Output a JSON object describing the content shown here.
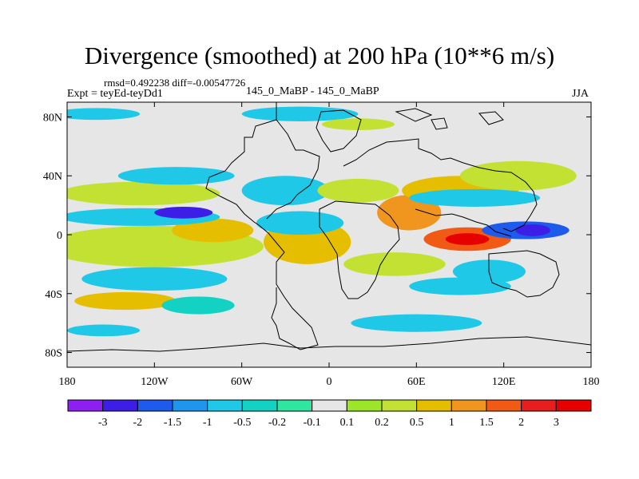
{
  "chart_data": {
    "type": "heatmap",
    "title": "Divergence (smoothed) at 200 hPa (10**6 m/s)",
    "stats": {
      "rmsd_label": "rmsd=",
      "rmsd": "0.492238",
      "diff_label": "diff=",
      "diff": "-0.00547726"
    },
    "experiment": "Expt = teyEd-teyDd1",
    "cases": "145_0_MaBP - 145_0_MaBP",
    "season": "JJA",
    "x_ticks": [
      {
        "value": -180,
        "label": "180"
      },
      {
        "value": -120,
        "label": "120W"
      },
      {
        "value": -60,
        "label": "60W"
      },
      {
        "value": 0,
        "label": "0"
      },
      {
        "value": 60,
        "label": "60E"
      },
      {
        "value": 120,
        "label": "120E"
      },
      {
        "value": 180,
        "label": "180"
      }
    ],
    "y_ticks": [
      {
        "value": 80,
        "label": "80N"
      },
      {
        "value": 40,
        "label": "40N"
      },
      {
        "value": 0,
        "label": "0"
      },
      {
        "value": -40,
        "label": "40S"
      },
      {
        "value": -80,
        "label": "80S"
      }
    ],
    "xlim": [
      -180,
      180
    ],
    "ylim": [
      -90,
      90
    ],
    "colorbar": {
      "labels": [
        "-3",
        "-2",
        "-1.5",
        "-1",
        "-0.5",
        "-0.2",
        "-0.1",
        "0.1",
        "0.2",
        "0.5",
        "1",
        "1.5",
        "2",
        "3"
      ],
      "colors": [
        "#8b20f0",
        "#3c1ee6",
        "#1e5aeb",
        "#1e96eb",
        "#1ec8e6",
        "#14d2c3",
        "#2ee6a0",
        "#e6e6e6",
        "#9be628",
        "#c3e132",
        "#e6be00",
        "#f0961e",
        "#f05a14",
        "#e61e1e",
        "#e60000"
      ]
    },
    "field": {
      "background_level": 7,
      "features": [
        {
          "lon": -135,
          "lat": -8,
          "rlon": 30,
          "rlat": 6,
          "level": 14
        },
        {
          "lon": -125,
          "lat": -8,
          "rlon": 55,
          "rlat": 10,
          "level": 11
        },
        {
          "lon": -120,
          "lat": -8,
          "rlon": 75,
          "rlat": 14,
          "level": 9
        },
        {
          "lon": -80,
          "lat": 3,
          "rlon": 18,
          "rlat": 5,
          "level": 13
        },
        {
          "lon": -80,
          "lat": 3,
          "rlon": 28,
          "rlat": 8,
          "level": 10
        },
        {
          "lon": -130,
          "lat": 12,
          "rlon": 55,
          "rlat": 6,
          "level": 4
        },
        {
          "lon": -100,
          "lat": 15,
          "rlon": 20,
          "rlat": 4,
          "level": 1
        },
        {
          "lon": -130,
          "lat": 28,
          "rlon": 55,
          "rlat": 8,
          "level": 9
        },
        {
          "lon": -105,
          "lat": 40,
          "rlon": 40,
          "rlat": 6,
          "level": 4
        },
        {
          "lon": -120,
          "lat": -30,
          "rlon": 50,
          "rlat": 8,
          "level": 4
        },
        {
          "lon": -140,
          "lat": -45,
          "rlon": 35,
          "rlat": 6,
          "level": 10
        },
        {
          "lon": -90,
          "lat": -48,
          "rlon": 25,
          "rlat": 6,
          "level": 5
        },
        {
          "lon": -15,
          "lat": -5,
          "rlon": 30,
          "rlat": 15,
          "level": 10
        },
        {
          "lon": -20,
          "lat": 8,
          "rlon": 30,
          "rlat": 8,
          "level": 4
        },
        {
          "lon": -30,
          "lat": 30,
          "rlon": 30,
          "rlat": 10,
          "level": 4
        },
        {
          "lon": 20,
          "lat": 30,
          "rlon": 28,
          "rlat": 8,
          "level": 9
        },
        {
          "lon": 55,
          "lat": 15,
          "rlon": 22,
          "rlat": 12,
          "level": 11
        },
        {
          "lon": 95,
          "lat": -3,
          "rlon": 30,
          "rlat": 8,
          "level": 12
        },
        {
          "lon": 95,
          "lat": -3,
          "rlon": 15,
          "rlat": 4,
          "level": 14
        },
        {
          "lon": 135,
          "lat": 3,
          "rlon": 30,
          "rlat": 6,
          "level": 2
        },
        {
          "lon": 140,
          "lat": 3,
          "rlon": 12,
          "rlat": 4,
          "level": 1
        },
        {
          "lon": 90,
          "lat": 30,
          "rlon": 40,
          "rlat": 10,
          "level": 10
        },
        {
          "lon": 130,
          "lat": 40,
          "rlon": 40,
          "rlat": 10,
          "level": 9
        },
        {
          "lon": 100,
          "lat": 25,
          "rlon": 45,
          "rlat": 6,
          "level": 4
        },
        {
          "lon": 45,
          "lat": -20,
          "rlon": 35,
          "rlat": 8,
          "level": 9
        },
        {
          "lon": 110,
          "lat": -25,
          "rlon": 25,
          "rlat": 8,
          "level": 4
        },
        {
          "lon": 90,
          "lat": -35,
          "rlon": 35,
          "rlat": 6,
          "level": 4
        },
        {
          "lon": 60,
          "lat": -60,
          "rlon": 45,
          "rlat": 6,
          "level": 4
        },
        {
          "lon": -155,
          "lat": -65,
          "rlon": 25,
          "rlat": 4,
          "level": 4
        },
        {
          "lon": -20,
          "lat": 82,
          "rlon": 40,
          "rlat": 5,
          "level": 4
        },
        {
          "lon": 20,
          "lat": 75,
          "rlon": 25,
          "rlat": 4,
          "level": 9
        },
        {
          "lon": -160,
          "lat": 82,
          "rlon": 30,
          "rlat": 4,
          "level": 4
        }
      ]
    }
  }
}
